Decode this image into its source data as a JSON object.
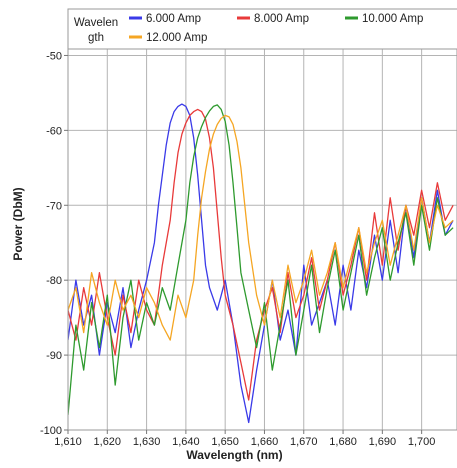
{
  "chart_data": {
    "type": "line",
    "xlabel": "Wavelength (nm)",
    "ylabel": "Power (DbM)",
    "xlim": [
      1610,
      1709
    ],
    "ylim": [
      -100,
      -45
    ],
    "x_ticks": [
      1610,
      1620,
      1630,
      1640,
      1650,
      1660,
      1670,
      1680,
      1690,
      1700
    ],
    "x_tick_labels": [
      "1,610",
      "1,620",
      "1,630",
      "1,640",
      "1,650",
      "1,660",
      "1,670",
      "1,680",
      "1,690",
      "1,700"
    ],
    "y_ticks": [
      -100,
      -90,
      -80,
      -70,
      -60,
      -50
    ],
    "y_tick_labels": [
      "-100",
      "-90",
      "-80",
      "-70",
      "-60",
      "-50"
    ],
    "grid": true,
    "legend": {
      "title": "Wavelength",
      "title_lines": [
        "Wavelen",
        "gth"
      ],
      "placement": "top"
    },
    "series": [
      {
        "name": "6.000 Amp",
        "color": "#3a3ae8",
        "x": [
          1610,
          1612,
          1614,
          1616,
          1618,
          1620,
          1622,
          1624,
          1626,
          1628,
          1630,
          1632,
          1633,
          1634,
          1635,
          1636,
          1637,
          1638,
          1639,
          1640,
          1641,
          1642,
          1643,
          1644,
          1645,
          1646,
          1648,
          1650,
          1652,
          1654,
          1656,
          1658,
          1660,
          1662,
          1664,
          1666,
          1668,
          1670,
          1672,
          1674,
          1676,
          1678,
          1680,
          1682,
          1684,
          1686,
          1688,
          1690,
          1692,
          1694,
          1696,
          1698,
          1700,
          1702,
          1704,
          1706,
          1708
        ],
        "y": [
          -88,
          -80,
          -86,
          -82,
          -90,
          -83,
          -87,
          -81,
          -89,
          -84,
          -80,
          -75,
          -70,
          -66,
          -62,
          -59,
          -57.5,
          -56.8,
          -56.5,
          -56.8,
          -58,
          -61,
          -66,
          -72,
          -78,
          -81,
          -84,
          -80,
          -86,
          -94,
          -99,
          -92,
          -86,
          -80,
          -88,
          -84,
          -90,
          -78,
          -86,
          -83,
          -80,
          -86,
          -78,
          -84,
          -76,
          -81,
          -74,
          -80,
          -72,
          -79,
          -70,
          -77,
          -69,
          -75,
          -68,
          -74,
          -72
        ]
      },
      {
        "name": "8.000 Amp",
        "color": "#e83a3a",
        "x": [
          1610,
          1612,
          1614,
          1616,
          1618,
          1620,
          1622,
          1624,
          1626,
          1628,
          1630,
          1632,
          1634,
          1636,
          1637,
          1638,
          1639,
          1640,
          1641,
          1642,
          1643,
          1644,
          1645,
          1646,
          1647,
          1648,
          1649,
          1650,
          1652,
          1654,
          1656,
          1658,
          1660,
          1662,
          1664,
          1666,
          1668,
          1670,
          1672,
          1674,
          1676,
          1678,
          1680,
          1682,
          1684,
          1686,
          1688,
          1690,
          1692,
          1694,
          1696,
          1698,
          1700,
          1702,
          1704,
          1706,
          1708
        ],
        "y": [
          -84,
          -88,
          -81,
          -86,
          -79,
          -85,
          -90,
          -82,
          -87,
          -80,
          -84,
          -86,
          -78,
          -72,
          -67,
          -63,
          -60.5,
          -59,
          -58,
          -57.5,
          -57.2,
          -57.5,
          -58.5,
          -61,
          -65,
          -71,
          -77,
          -82,
          -86,
          -91,
          -96,
          -88,
          -84,
          -81,
          -87,
          -79,
          -85,
          -82,
          -77,
          -84,
          -80,
          -75,
          -82,
          -78,
          -73,
          -80,
          -71,
          -78,
          -69,
          -76,
          -70,
          -74,
          -68,
          -73,
          -67,
          -72,
          -70
        ]
      },
      {
        "name": "10.000 Amp",
        "color": "#2e9a2e",
        "x": [
          1610,
          1612,
          1614,
          1616,
          1618,
          1620,
          1622,
          1624,
          1626,
          1628,
          1630,
          1632,
          1634,
          1636,
          1638,
          1640,
          1641,
          1642,
          1643,
          1644,
          1645,
          1646,
          1647,
          1648,
          1649,
          1650,
          1651,
          1652,
          1653,
          1654,
          1656,
          1658,
          1660,
          1662,
          1664,
          1666,
          1668,
          1670,
          1672,
          1674,
          1676,
          1678,
          1680,
          1682,
          1684,
          1686,
          1688,
          1690,
          1692,
          1694,
          1696,
          1698,
          1700,
          1702,
          1704,
          1706,
          1708
        ],
        "y": [
          -98,
          -86,
          -92,
          -83,
          -89,
          -82,
          -94,
          -85,
          -80,
          -88,
          -83,
          -86,
          -81,
          -84,
          -78,
          -72,
          -67,
          -63.5,
          -61,
          -59.5,
          -58.3,
          -57.4,
          -56.8,
          -56.6,
          -57.2,
          -58.8,
          -62,
          -67,
          -73,
          -79,
          -84,
          -89,
          -83,
          -92,
          -86,
          -80,
          -90,
          -84,
          -78,
          -87,
          -81,
          -76,
          -84,
          -79,
          -74,
          -82,
          -77,
          -73,
          -80,
          -75,
          -71,
          -78,
          -70,
          -76,
          -69,
          -74,
          -73
        ]
      },
      {
        "name": "12.000 Amp",
        "color": "#f5a623",
        "x": [
          1610,
          1612,
          1614,
          1616,
          1618,
          1620,
          1622,
          1624,
          1626,
          1628,
          1630,
          1632,
          1634,
          1636,
          1638,
          1640,
          1642,
          1643,
          1644,
          1645,
          1646,
          1647,
          1648,
          1649,
          1650,
          1651,
          1652,
          1653,
          1654,
          1655,
          1656,
          1658,
          1660,
          1662,
          1664,
          1666,
          1668,
          1670,
          1672,
          1674,
          1676,
          1678,
          1680,
          1682,
          1684,
          1686,
          1688,
          1690,
          1692,
          1694,
          1696,
          1698,
          1700,
          1702,
          1704,
          1706,
          1708
        ],
        "y": [
          -84,
          -81,
          -87,
          -79,
          -83,
          -86,
          -80,
          -84,
          -82,
          -85,
          -81,
          -83,
          -86,
          -88,
          -82,
          -85,
          -80,
          -74,
          -69,
          -65.5,
          -62.5,
          -60.5,
          -59.2,
          -58.4,
          -58,
          -58.2,
          -59.2,
          -61.5,
          -65,
          -70,
          -75,
          -82,
          -86,
          -80,
          -85,
          -78,
          -83,
          -80,
          -76,
          -82,
          -79,
          -75,
          -81,
          -77,
          -73,
          -79,
          -75,
          -72,
          -78,
          -74,
          -70,
          -76,
          -69,
          -75,
          -70,
          -73,
          -72
        ]
      }
    ]
  }
}
